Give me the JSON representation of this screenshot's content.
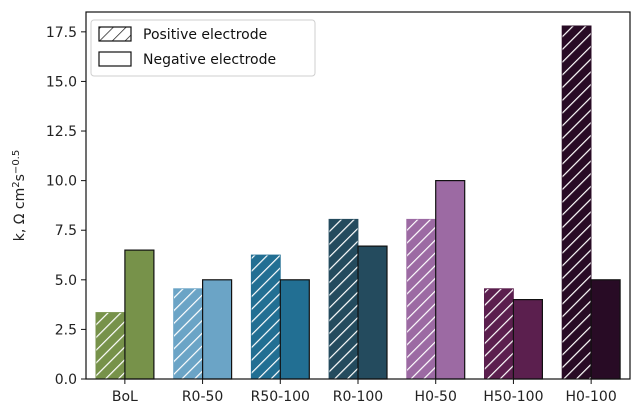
{
  "chart_data": {
    "type": "bar",
    "categories": [
      "BoL",
      "R0-50",
      "R50-100",
      "R0-100",
      "H0-50",
      "H50-100",
      "H0-100"
    ],
    "series": [
      {
        "name": "Positive electrode",
        "pattern": "hatched",
        "values": [
          3.35,
          4.55,
          6.25,
          8.05,
          8.05,
          4.55,
          17.8
        ]
      },
      {
        "name": "Negative electrode",
        "pattern": "solid",
        "values": [
          6.5,
          5.0,
          5.0,
          6.7,
          10.0,
          4.0,
          5.0
        ]
      }
    ],
    "category_colors": {
      "BoL": "#77924a",
      "R0-50": "#6ba4c6",
      "R50-100": "#226f93",
      "R0-100": "#244b5e",
      "H0-50": "#9c6aa3",
      "H50-100": "#5b1f4e",
      "H0-100": "#280b25"
    },
    "ylabel_main": "k,  Ω cm",
    "ylabel_sup1": "2",
    "ylabel_mid": "s",
    "ylabel_sup2": "−0.5",
    "ylim": [
      0,
      18.5
    ],
    "yticks": [
      "0.0",
      "2.5",
      "5.0",
      "7.5",
      "10.0",
      "12.5",
      "15.0",
      "17.5"
    ],
    "legend": {
      "position": "top-left",
      "entries": [
        "Positive electrode",
        "Negative electrode"
      ]
    },
    "grid": false
  }
}
